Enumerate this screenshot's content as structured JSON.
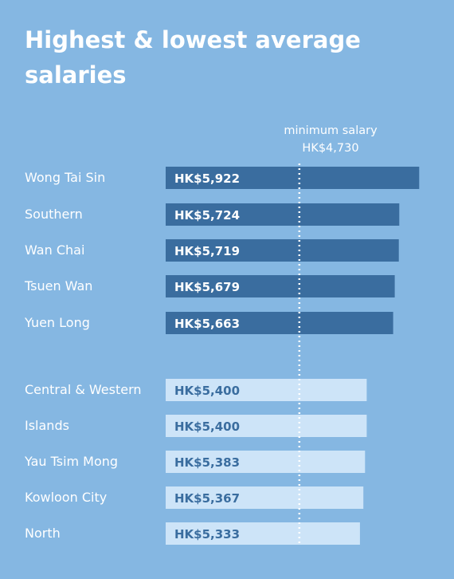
{
  "title": "Highest & lowest average salaries",
  "minimum_label": {
    "line1": "minimum salary",
    "line2": "HK$4,730"
  },
  "colors": {
    "background": "#85b7e2",
    "highest_bar": "#3a6d9f",
    "lowest_bar": "#cde4f8",
    "highest_text": "#ffffff",
    "lowest_text": "#3a6d9f",
    "reference_line": "#ffffff"
  },
  "chart_data": {
    "type": "bar",
    "orientation": "horizontal",
    "title": "Highest & lowest average salaries",
    "reference_line": {
      "label": "minimum salary",
      "value": 4730,
      "value_label": "HK$4,730"
    },
    "groups": [
      {
        "group": "highest",
        "categories": [
          "Wong Tai Sin",
          "Southern",
          "Wan Chai",
          "Tsuen Wan",
          "Yuen Long"
        ],
        "values": [
          5922,
          5724,
          5719,
          5679,
          5663
        ],
        "value_labels": [
          "HK$5,922",
          "HK$5,724",
          "HK$5,719",
          "HK$5,679",
          "HK$5,663"
        ]
      },
      {
        "group": "lowest",
        "categories": [
          "Central & Western",
          "Islands",
          "Yau Tsim Mong",
          "Kowloon City",
          "North"
        ],
        "values": [
          5400,
          5400,
          5383,
          5367,
          5333
        ],
        "value_labels": [
          "HK$5,400",
          "HK$5,400",
          "HK$5,383",
          "HK$5,367",
          "HK$5,333"
        ]
      }
    ]
  }
}
